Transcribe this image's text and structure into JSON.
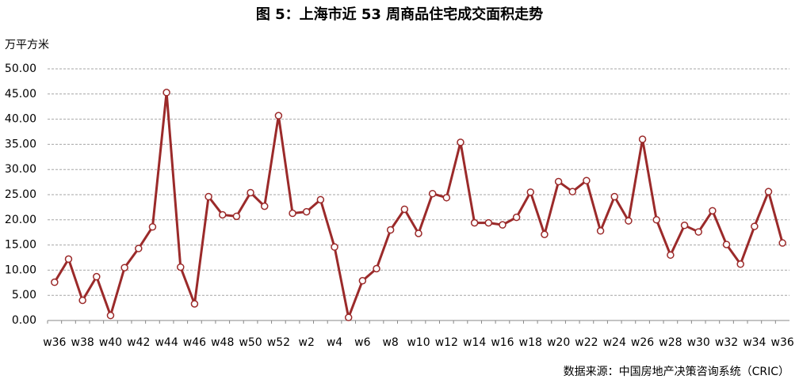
{
  "chart_data": {
    "type": "line",
    "title": "图 5：上海市近 53 周商品住宅成交面积走势",
    "y_label": "万平方米",
    "source": "数据来源：中国房地产决策咨询系统（CRIC）",
    "categories": [
      "w36",
      null,
      "w38",
      null,
      "w40",
      null,
      "w42",
      null,
      "w44",
      null,
      "w46",
      null,
      "w48",
      null,
      "w50",
      null,
      "w52",
      null,
      "w2",
      null,
      "w4",
      null,
      "w6",
      null,
      "w8",
      null,
      "w10",
      null,
      "w12",
      null,
      "w14",
      null,
      "w16",
      null,
      "w18",
      null,
      "w20",
      null,
      "w22",
      null,
      "w24",
      null,
      "w26",
      null,
      "w28",
      null,
      "w30",
      null,
      "w32",
      null,
      "w34",
      null,
      "w36"
    ],
    "series": [
      {
        "name": "成交面积",
        "color": "#9b2a2a",
        "values": [
          7.6,
          12.2,
          4.0,
          8.7,
          1.0,
          10.5,
          14.3,
          18.6,
          45.3,
          10.6,
          3.3,
          24.6,
          21.0,
          20.7,
          25.4,
          22.7,
          40.7,
          21.3,
          21.6,
          24.0,
          14.6,
          0.6,
          7.9,
          10.3,
          18.0,
          22.1,
          17.3,
          25.2,
          24.4,
          35.4,
          19.4,
          19.4,
          19.0,
          20.5,
          25.5,
          17.1,
          27.6,
          25.6,
          27.8,
          17.8,
          24.6,
          19.8,
          36.0,
          20.0,
          13.0,
          18.9,
          17.6,
          21.8,
          15.1,
          11.2,
          18.7,
          25.6,
          15.4
        ]
      }
    ],
    "ylim": [
      0,
      50
    ],
    "yticks": [
      {
        "value": 0,
        "label": "0.00"
      },
      {
        "value": 5,
        "label": "5.00"
      },
      {
        "value": 10,
        "label": "10.00"
      },
      {
        "value": 15,
        "label": "15.00"
      },
      {
        "value": 20,
        "label": "20.00"
      },
      {
        "value": 25,
        "label": "25.00"
      },
      {
        "value": 30,
        "label": "30.00"
      },
      {
        "value": 35,
        "label": "35.00"
      },
      {
        "value": 40,
        "label": "40.00"
      },
      {
        "value": 45,
        "label": "45.00"
      },
      {
        "value": 50,
        "label": "50.00"
      }
    ],
    "grid": true
  }
}
